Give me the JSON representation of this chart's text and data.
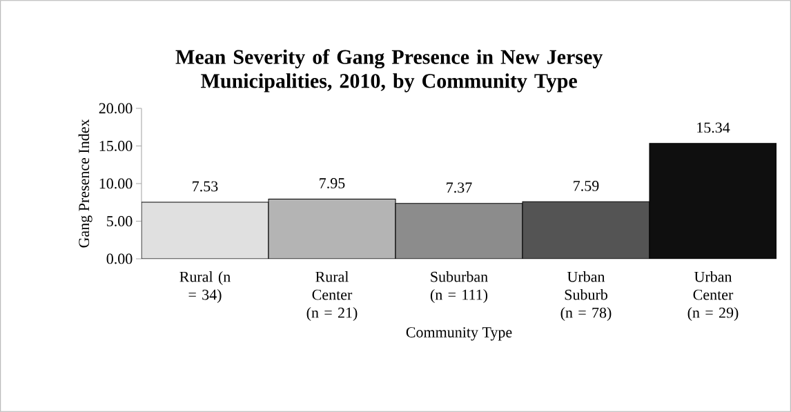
{
  "chart_data": {
    "type": "bar",
    "title": "Mean Severity of Gang Presence in New Jersey Municipalities, 2010, by Community Type",
    "xlabel": "Community Type",
    "ylabel": "Gang Presence Index",
    "categories": [
      "Rural (n = 34)",
      "Rural Center (n = 21)",
      "Suburban (n = 111)",
      "Urban Suburb (n = 78)",
      "Urban Center (n = 29)"
    ],
    "values": [
      7.53,
      7.95,
      7.37,
      7.59,
      15.34
    ],
    "colors": [
      "#e0e0e0",
      "#b4b4b4",
      "#8c8c8c",
      "#545454",
      "#0f0f0f"
    ],
    "ylim": [
      0,
      20
    ],
    "yticks": [
      {
        "value": 0,
        "label": "0.00"
      },
      {
        "value": 5,
        "label": "5.00"
      },
      {
        "value": 10,
        "label": "10.00"
      },
      {
        "value": 15,
        "label": "15.00"
      },
      {
        "value": 20,
        "label": "20.00"
      }
    ],
    "data_labels": true
  }
}
